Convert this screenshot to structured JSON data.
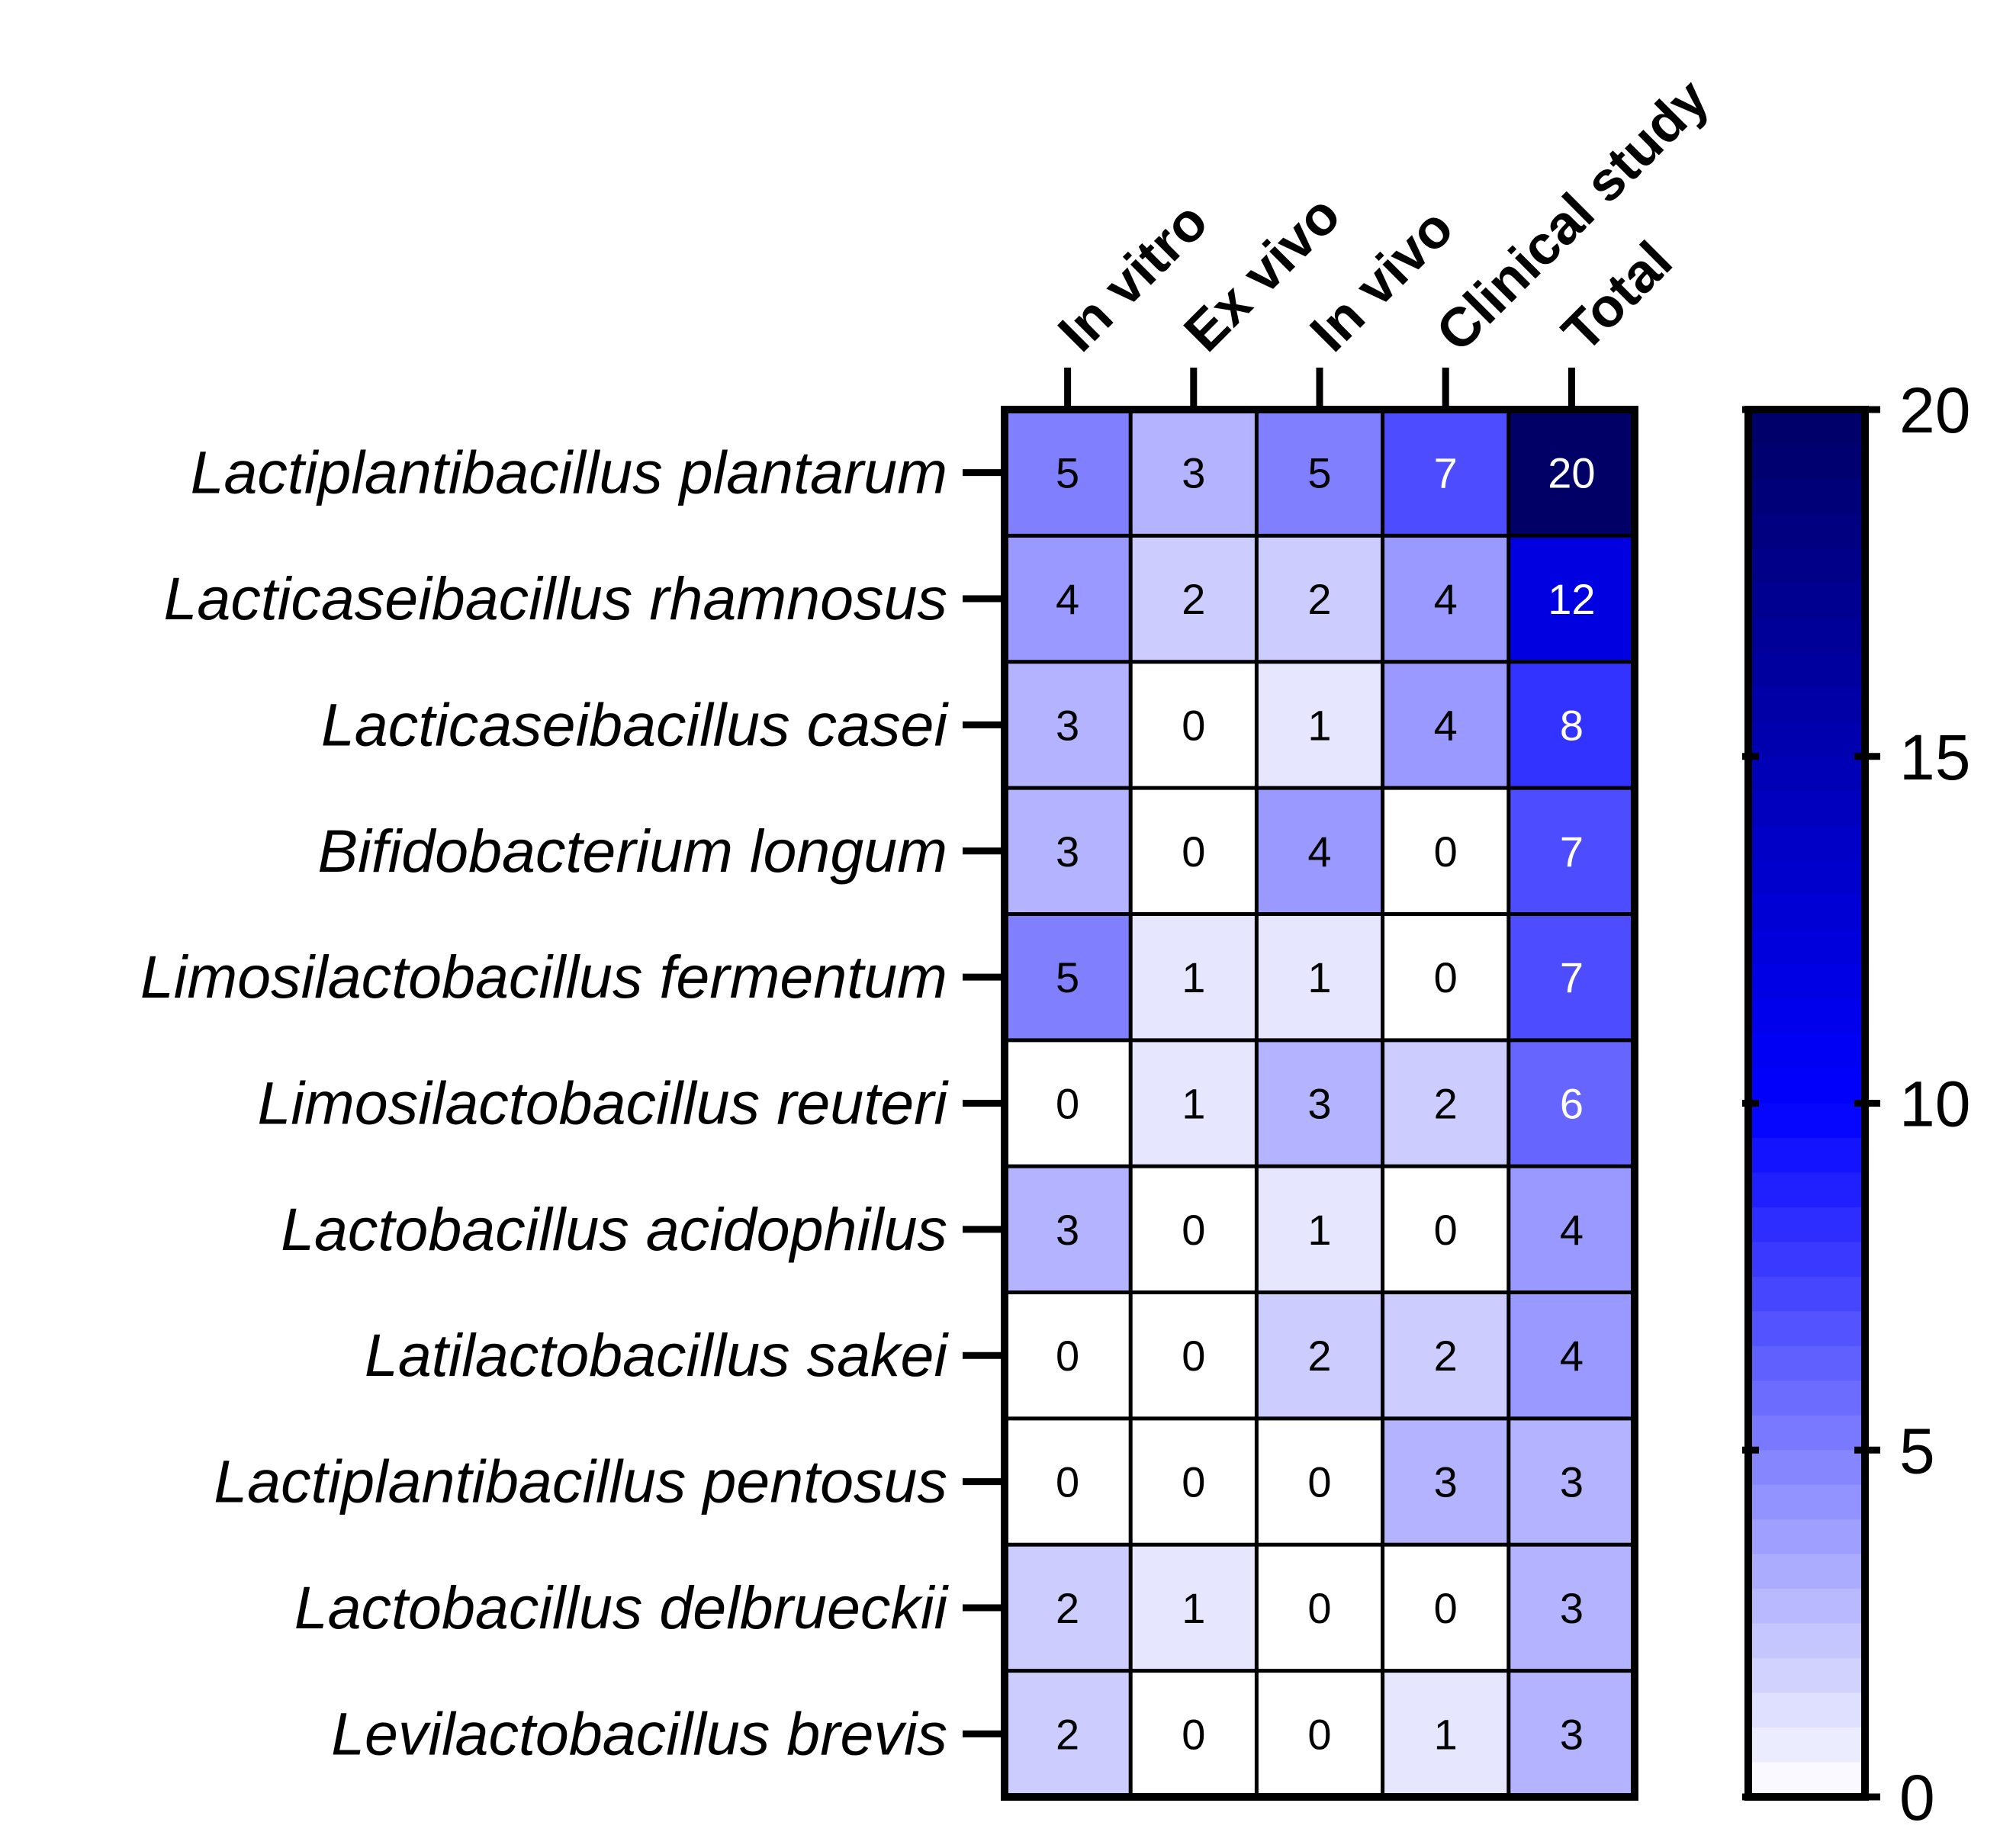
{
  "chart_data": {
    "type": "heatmap",
    "columns": [
      "In vitro",
      "Ex vivo",
      "In vivo",
      "Clinical study",
      "Total"
    ],
    "rows": [
      "Lactiplantibacillus plantarum",
      "Lacticaseibacillus rhamnosus",
      "Lacticaseibacillus casei",
      "Bifidobacterium longum",
      "Limosilactobacillus fermentum",
      "Limosilactobacillus reuteri",
      "Lactobacillus acidophilus",
      "Latilactobacillus sakei",
      "Lactiplantibacillus pentosus",
      "Lactobacillus delbrueckii",
      "Levilactobacillus brevis"
    ],
    "values": [
      [
        5,
        3,
        5,
        7,
        20
      ],
      [
        4,
        2,
        2,
        4,
        12
      ],
      [
        3,
        0,
        1,
        4,
        8
      ],
      [
        3,
        0,
        4,
        0,
        7
      ],
      [
        5,
        1,
        1,
        0,
        7
      ],
      [
        0,
        1,
        3,
        2,
        6
      ],
      [
        3,
        0,
        1,
        0,
        4
      ],
      [
        0,
        0,
        2,
        2,
        4
      ],
      [
        0,
        0,
        0,
        3,
        3
      ],
      [
        2,
        1,
        0,
        0,
        3
      ],
      [
        2,
        0,
        0,
        1,
        3
      ]
    ],
    "colorbar": {
      "min": 0,
      "max": 20,
      "ticks": [
        0,
        5,
        10,
        15,
        20
      ],
      "color_low": "#ffffff",
      "color_mid": "#0000ff",
      "color_high": "#000066",
      "mid_value": 10
    }
  }
}
